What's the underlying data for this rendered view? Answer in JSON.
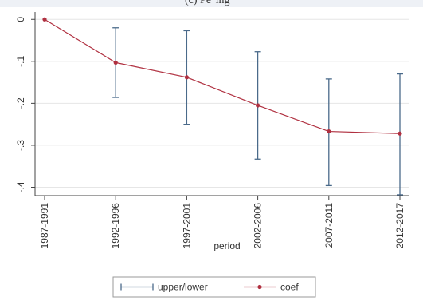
{
  "header_fragment": "(c) Pe°ing",
  "chart_data": {
    "type": "line",
    "title": "",
    "xlabel": "period",
    "ylabel": "",
    "categories": [
      "1987-1991",
      "1992-1996",
      "1997-2001",
      "2002-2006",
      "2007-2011",
      "2012-2017"
    ],
    "ylim": [
      -0.42,
      0.01
    ],
    "yticks": [
      0,
      -0.1,
      -0.2,
      -0.3,
      -0.4
    ],
    "ytick_labels": [
      "0",
      "-.1",
      "-.2",
      "-.3",
      "-.4"
    ],
    "grid": true,
    "legend_position": "bottom",
    "series": [
      {
        "name": "coef",
        "values": [
          0,
          -0.103,
          -0.138,
          -0.205,
          -0.267,
          -0.272
        ],
        "color": "#b03040"
      },
      {
        "name": "upper/lower",
        "upper": [
          0,
          -0.02,
          -0.027,
          -0.077,
          -0.142,
          -0.13
        ],
        "lower": [
          0,
          -0.186,
          -0.25,
          -0.333,
          -0.396,
          -0.418
        ],
        "color": "#4a6a8a"
      }
    ]
  }
}
